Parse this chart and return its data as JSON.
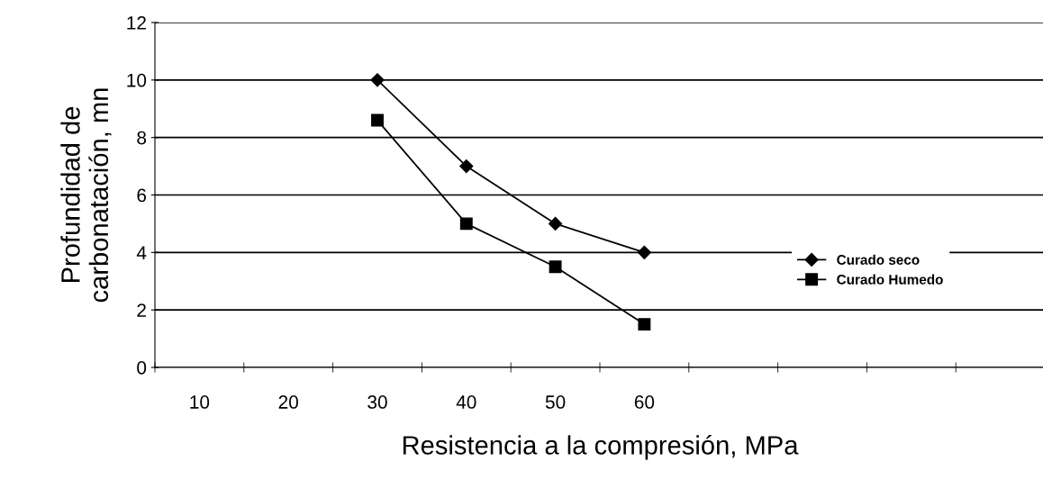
{
  "chart_data": {
    "type": "line",
    "xlabel": "Resistencia a la compresión, MPa",
    "ylabel": "Profundidad de\ncarbonatación, mn",
    "categories": [
      "10",
      "20",
      "30",
      "40",
      "50",
      "60",
      null,
      null,
      null,
      null
    ],
    "series": [
      {
        "name": "Curado seco",
        "color": "#000000",
        "marker": "diamond",
        "values": [
          null,
          null,
          10,
          7,
          5,
          4,
          null,
          null,
          null,
          null
        ]
      },
      {
        "name": "Curado Humedo",
        "color": "#000000",
        "marker": "square",
        "values": [
          null,
          null,
          8.6,
          5,
          3.5,
          1.5,
          null,
          null,
          null,
          null
        ]
      }
    ],
    "ylim": [
      0,
      12
    ],
    "yticks": [
      0,
      2,
      4,
      6,
      8,
      10,
      12
    ],
    "grid": "y",
    "legend": "right",
    "line_style": "solid"
  }
}
